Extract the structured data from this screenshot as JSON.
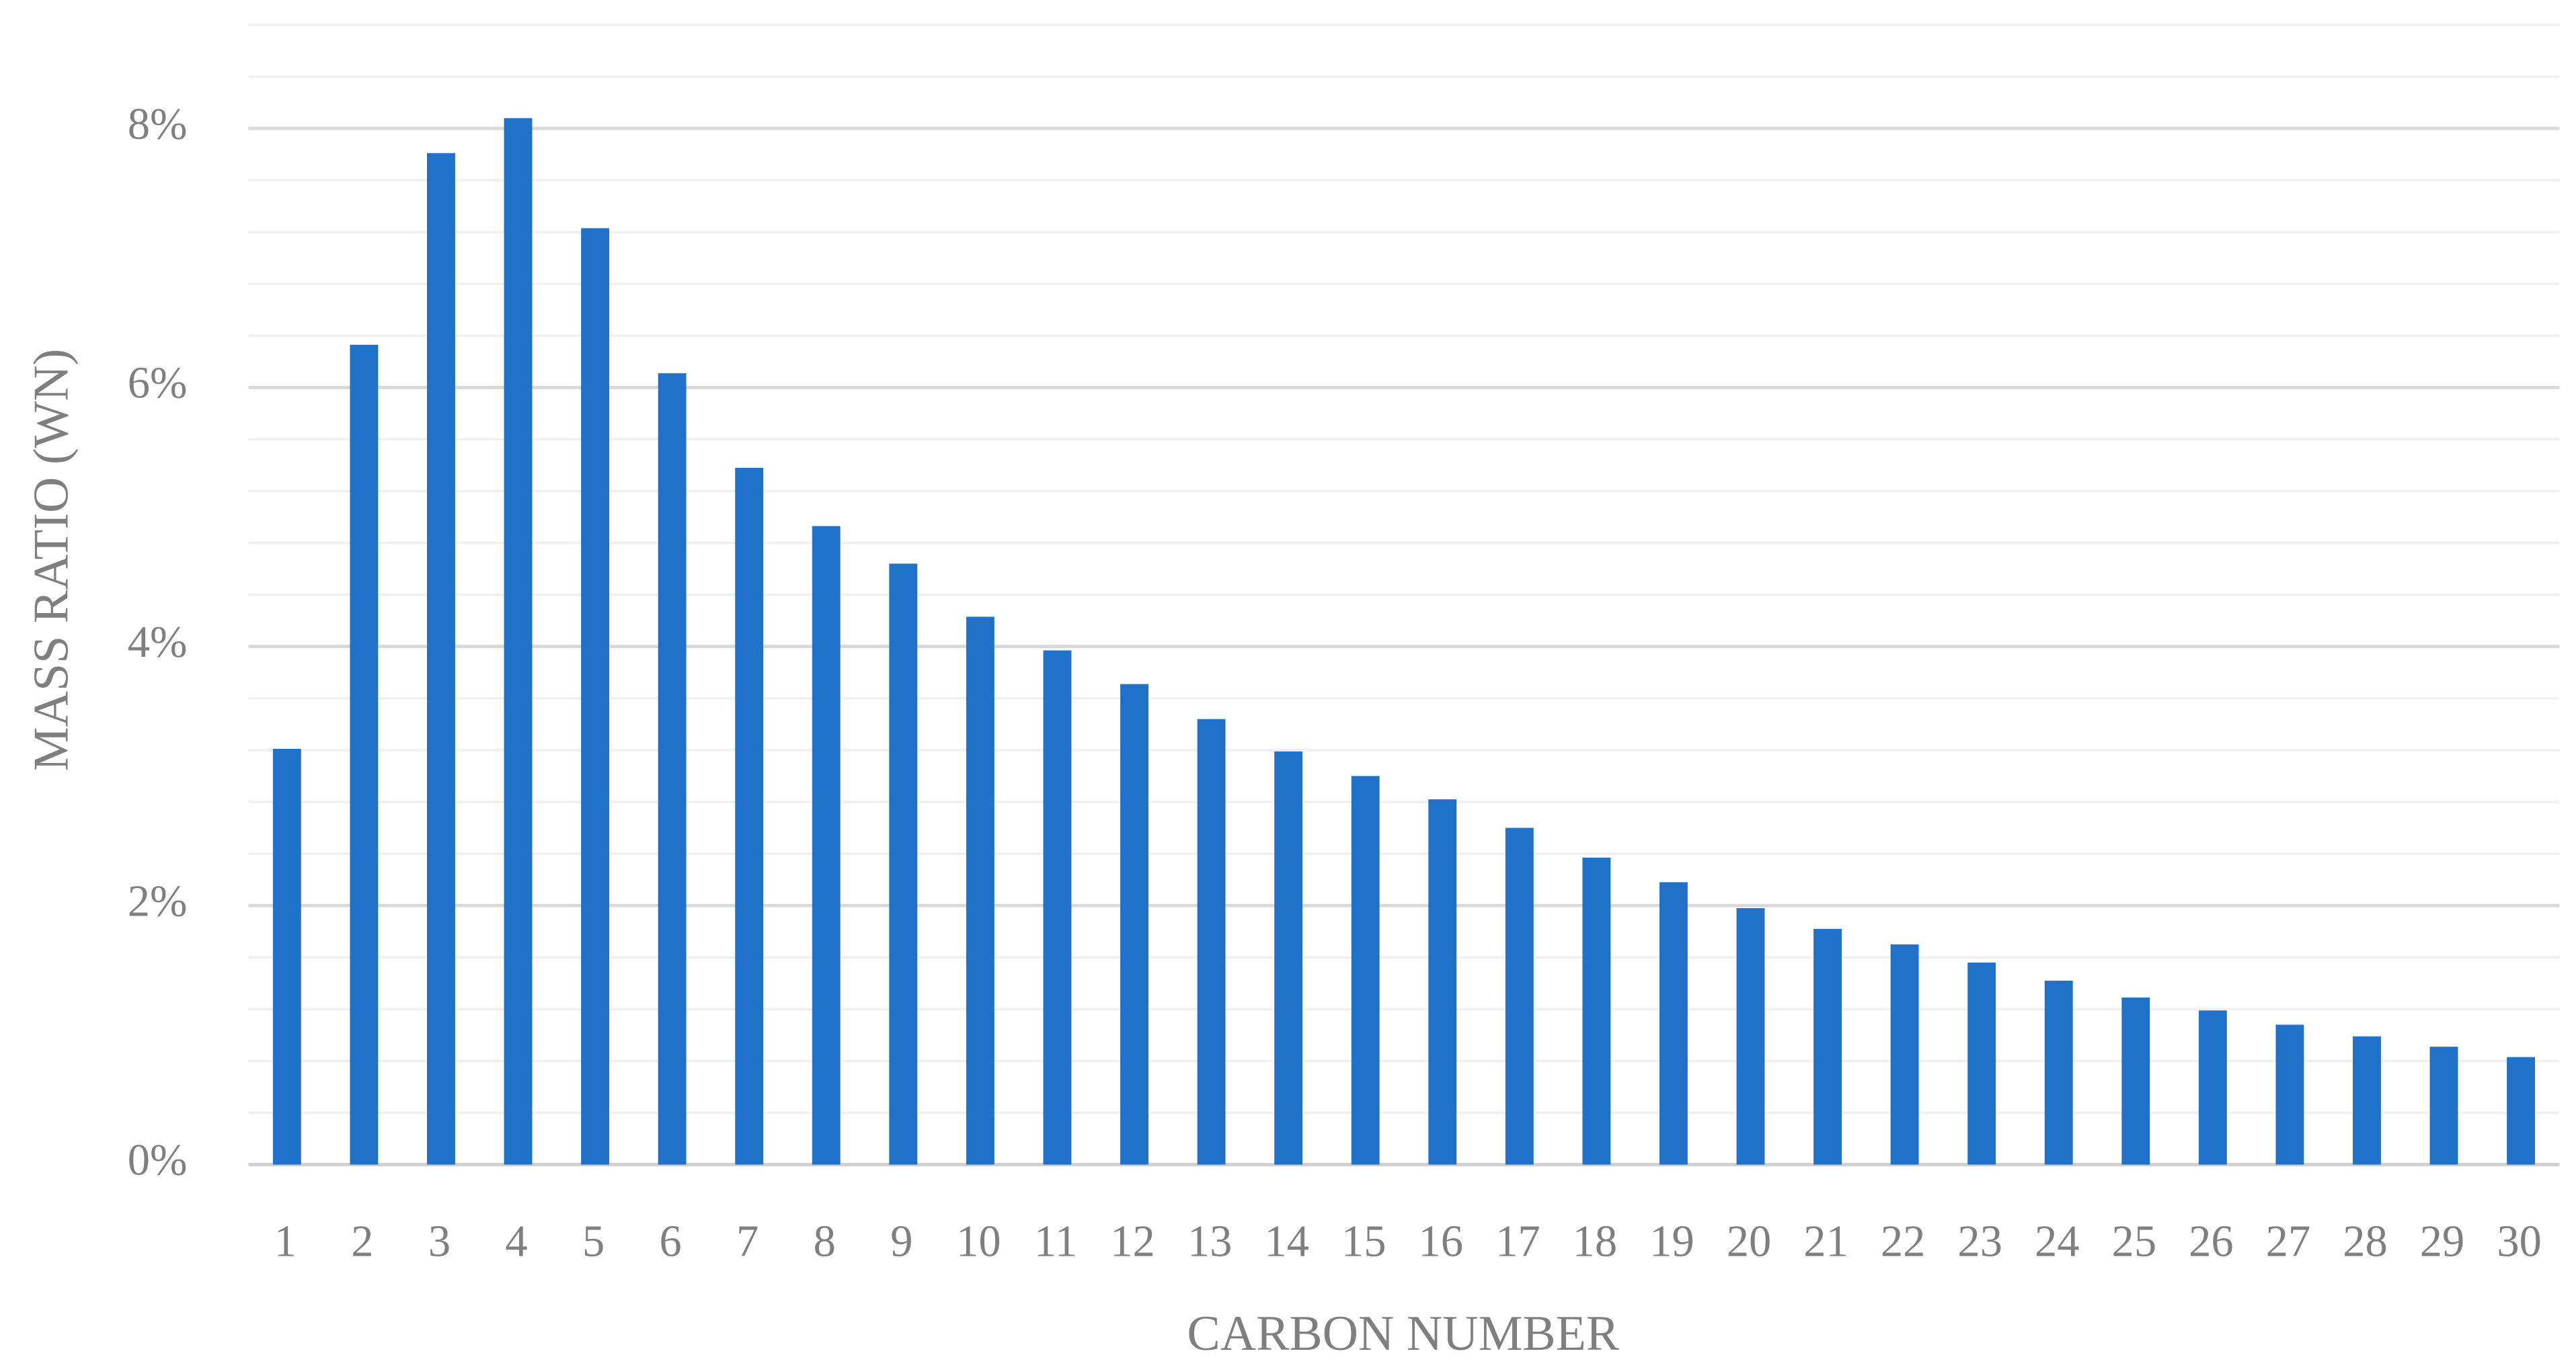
{
  "chart_data": {
    "type": "bar",
    "x_label": "CARBON NUMBER",
    "y_label": "MASS RATIO (WN)",
    "categories": [
      "1",
      "2",
      "3",
      "4",
      "5",
      "6",
      "7",
      "8",
      "9",
      "10",
      "11",
      "12",
      "13",
      "14",
      "15",
      "16",
      "17",
      "18",
      "19",
      "20",
      "21",
      "22",
      "23",
      "24",
      "25",
      "26",
      "27",
      "28",
      "29",
      "30"
    ],
    "values": [
      3.21,
      6.33,
      7.81,
      8.08,
      7.23,
      6.11,
      5.38,
      4.93,
      4.64,
      4.23,
      3.97,
      3.71,
      3.44,
      3.19,
      3.0,
      2.82,
      2.6,
      2.37,
      2.18,
      1.98,
      1.82,
      1.7,
      1.56,
      1.42,
      1.29,
      1.19,
      1.08,
      0.99,
      0.91,
      0.83
    ],
    "color": "#1f72c8",
    "ylim": [
      0,
      8.8
    ],
    "yticks": [
      {
        "value": 0,
        "label": "0%"
      },
      {
        "value": 2,
        "label": "2%"
      },
      {
        "value": 4,
        "label": "4%"
      },
      {
        "value": 6,
        "label": "6%"
      },
      {
        "value": 8,
        "label": "8%"
      }
    ],
    "minor_yticks": [
      0.4,
      0.8,
      1.2,
      1.6,
      2.4,
      2.8,
      3.2,
      3.6,
      4.4,
      4.8,
      5.2,
      5.6,
      6.4,
      6.8,
      7.2,
      7.6,
      8.4,
      8.8
    ],
    "grid": true
  }
}
